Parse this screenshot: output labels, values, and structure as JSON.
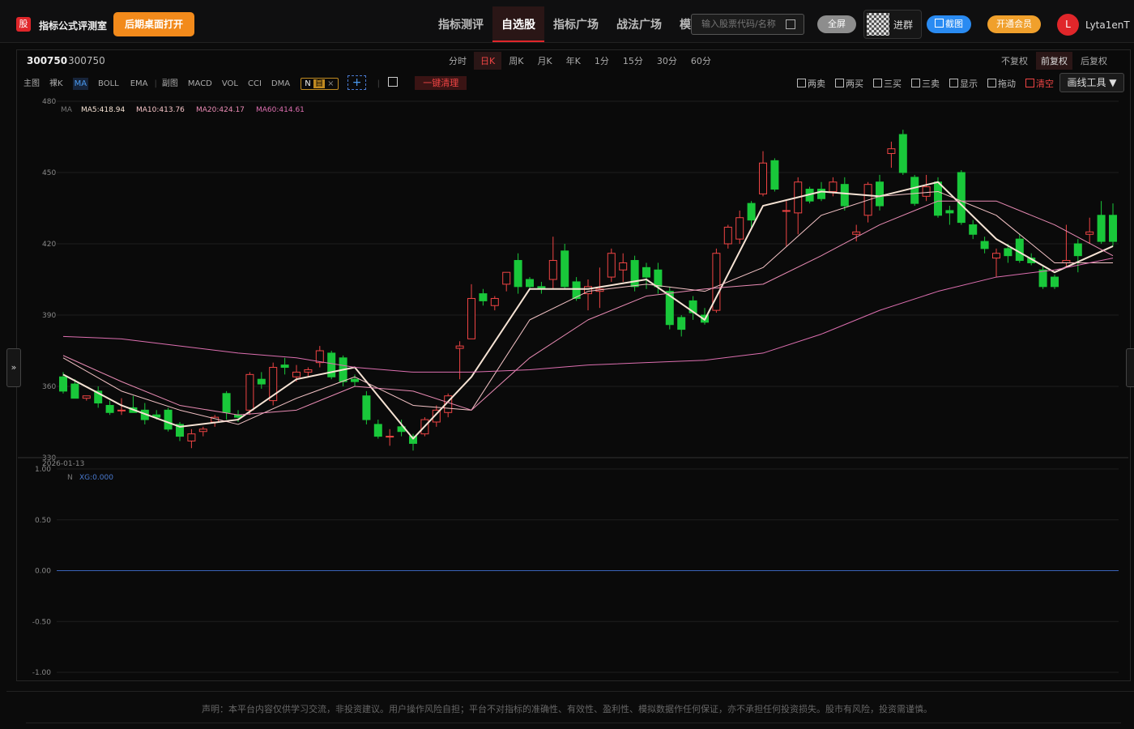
{
  "header": {
    "logo": "股",
    "title": "指标公式评测室",
    "open_btn": "后期桌面打开",
    "nav": [
      "指标测评",
      "自选股",
      "指标广场",
      "战法广场",
      "模拟盘"
    ],
    "search": "输入股票代码/名称",
    "fullscreen": "全屏",
    "group": "进群",
    "screenshot": "截图",
    "vip": "开通会员",
    "avatar": "L",
    "user": "Lyta1enT"
  },
  "toolbar": {
    "code": "300750",
    "name": "300750",
    "periods": [
      "分时",
      "日K",
      "周K",
      "月K",
      "年K",
      "1分",
      "15分",
      "30分",
      "60分"
    ],
    "adjust": [
      "不复权",
      "前复权",
      "后复权"
    ],
    "main": "主图",
    "main_items": [
      "裸K",
      "MA",
      "BOLL",
      "EMA"
    ],
    "sub": "副图",
    "sub_items": [
      "MACD",
      "VOL",
      "CCI",
      "DMA"
    ],
    "tag": "N",
    "tag_self": "自",
    "add": "+",
    "clear": "一键清理",
    "signals": [
      "两卖",
      "两买",
      "三买",
      "三卖",
      "显示",
      "拖动",
      "清空"
    ],
    "draw_tool": "画线工具 ▼",
    "side": "»"
  },
  "chart_data": {
    "type": "candlestick",
    "ylim": [
      330,
      480
    ],
    "yticks": [
      480,
      450,
      420,
      390,
      360,
      330
    ],
    "grid": true,
    "up_color": "#ef4444",
    "down_color": "#19c83a",
    "date_label": "2026-01-13",
    "ma_label": "MA",
    "ohlc": [
      [
        364,
        366,
        357,
        358
      ],
      [
        361,
        363,
        355,
        355
      ],
      [
        355,
        356,
        354,
        356
      ],
      [
        358,
        360,
        351,
        353
      ],
      [
        352,
        354,
        348,
        349
      ],
      [
        350,
        355,
        348,
        350
      ],
      [
        351,
        356,
        349,
        349
      ],
      [
        350,
        353,
        344,
        346
      ],
      [
        348,
        350,
        346,
        347
      ],
      [
        350,
        351,
        341,
        342
      ],
      [
        344,
        345,
        337,
        339
      ],
      [
        337,
        342,
        334,
        340
      ],
      [
        341,
        343,
        339,
        342
      ],
      [
        345,
        348,
        343,
        347
      ],
      [
        357,
        358,
        346,
        349
      ],
      [
        348,
        350,
        345,
        347
      ],
      [
        350,
        366,
        348,
        365
      ],
      [
        363,
        366,
        359,
        361
      ],
      [
        354,
        370,
        352,
        368
      ],
      [
        369,
        372,
        365,
        368
      ],
      [
        364,
        369,
        362,
        366
      ],
      [
        366,
        368,
        364,
        367
      ],
      [
        370,
        377,
        368,
        375
      ],
      [
        374,
        375,
        363,
        364
      ],
      [
        372,
        373,
        360,
        362
      ],
      [
        363,
        365,
        360,
        362
      ],
      [
        356,
        358,
        344,
        346
      ],
      [
        344,
        346,
        338,
        339
      ],
      [
        339,
        342,
        335,
        339
      ],
      [
        343,
        346,
        339,
        341
      ],
      [
        339,
        340,
        333,
        336
      ],
      [
        340,
        347,
        339,
        346
      ],
      [
        345,
        352,
        343,
        350
      ],
      [
        349,
        357,
        347,
        356
      ],
      [
        376,
        379,
        363,
        377
      ],
      [
        380,
        403,
        380,
        397
      ],
      [
        399,
        401,
        394,
        396
      ],
      [
        394,
        398,
        392,
        397
      ],
      [
        403,
        408,
        400,
        408
      ],
      [
        413,
        416,
        399,
        402
      ],
      [
        405,
        406,
        401,
        402
      ],
      [
        402,
        404,
        399,
        401
      ],
      [
        405,
        423,
        401,
        413
      ],
      [
        417,
        420,
        401,
        402
      ],
      [
        404,
        406,
        396,
        397
      ],
      [
        399,
        405,
        392,
        402
      ],
      [
        400,
        410,
        393,
        401
      ],
      [
        406,
        418,
        404,
        416
      ],
      [
        409,
        416,
        404,
        412
      ],
      [
        413,
        415,
        400,
        402
      ],
      [
        410,
        412,
        401,
        406
      ],
      [
        409,
        412,
        399,
        402
      ],
      [
        400,
        402,
        384,
        386
      ],
      [
        389,
        390,
        381,
        384
      ],
      [
        396,
        398,
        388,
        391
      ],
      [
        390,
        393,
        386,
        387
      ],
      [
        392,
        418,
        391,
        416
      ],
      [
        420,
        428,
        418,
        427
      ],
      [
        422,
        434,
        420,
        431
      ],
      [
        437,
        438,
        427,
        430
      ],
      [
        441,
        459,
        440,
        454
      ],
      [
        455,
        456,
        442,
        443
      ],
      [
        434,
        438,
        419,
        434
      ],
      [
        433,
        448,
        424,
        446
      ],
      [
        443,
        444,
        437,
        438
      ],
      [
        443,
        446,
        438,
        439
      ],
      [
        442,
        448,
        440,
        446
      ],
      [
        445,
        448,
        434,
        436
      ],
      [
        424,
        428,
        421,
        425
      ],
      [
        432,
        446,
        429,
        445
      ],
      [
        446,
        449,
        434,
        436
      ],
      [
        458,
        463,
        452,
        460
      ],
      [
        466,
        468,
        449,
        450
      ],
      [
        448,
        449,
        436,
        437
      ],
      [
        440,
        449,
        438,
        444
      ],
      [
        446,
        448,
        431,
        432
      ],
      [
        434,
        436,
        428,
        433
      ],
      [
        450,
        451,
        428,
        429
      ],
      [
        428,
        430,
        422,
        424
      ],
      [
        421,
        423,
        416,
        418
      ],
      [
        414,
        418,
        406,
        416
      ],
      [
        418,
        420,
        412,
        415
      ],
      [
        422,
        424,
        412,
        413
      ],
      [
        414,
        416,
        411,
        412
      ],
      [
        409,
        411,
        401,
        402
      ],
      [
        406,
        407,
        401,
        402
      ],
      [
        412,
        428,
        410,
        413
      ],
      [
        420,
        422,
        408,
        415
      ],
      [
        424,
        431,
        420,
        425
      ],
      [
        432,
        438,
        420,
        421
      ],
      [
        432,
        437,
        419,
        421
      ]
    ],
    "ma_x": [
      0,
      5,
      10,
      15,
      20,
      25,
      30,
      35,
      40,
      45,
      50,
      55,
      60,
      65,
      70,
      75,
      80,
      85,
      90
    ],
    "ma": [
      {
        "name": "MA5:418.94",
        "color": "#f6e3d4",
        "width": 2,
        "values": [
          365,
          352,
          343,
          346,
          363,
          368,
          338,
          364,
          401,
          401,
          405,
          388,
          436,
          442,
          440,
          446,
          422,
          408,
          419
        ]
      },
      {
        "name": "MA10:413.76",
        "color": "#f4c3c6",
        "width": 1,
        "values": [
          372,
          358,
          350,
          344,
          355,
          364,
          352,
          350,
          388,
          400,
          403,
          400,
          410,
          432,
          440,
          442,
          432,
          412,
          412
        ]
      },
      {
        "name": "MA20:424.17",
        "color": "#e98bb4",
        "width": 1,
        "values": [
          373,
          362,
          352,
          348,
          350,
          360,
          358,
          350,
          372,
          388,
          398,
          401,
          403,
          415,
          428,
          438,
          438,
          428,
          415
        ]
      },
      {
        "name": "MA60:414.61",
        "color": "#dd6fb0",
        "width": 1,
        "values": [
          381,
          380,
          377,
          374,
          372,
          368,
          366,
          366,
          367,
          369,
          370,
          371,
          374,
          382,
          392,
          400,
          406,
          409,
          414
        ]
      }
    ],
    "sub": {
      "label": "N",
      "ylim": [
        -1,
        1
      ],
      "yticks": [
        {
          "value": 1,
          "label": "1.00"
        },
        {
          "value": 0.5,
          "label": "0.50"
        },
        {
          "value": 0,
          "label": "0.00"
        },
        {
          "value": -0.5,
          "label": "-0.50"
        },
        {
          "value": -1,
          "label": "-1.00"
        }
      ],
      "xg": {
        "name": "XG:0.000",
        "color": "#3a63b8",
        "value": 0
      }
    }
  },
  "footer": "声明：本平台内容仅供学习交流，非投资建议。用户操作风险自担；平台不对指标的准确性、有效性、盈利性、模拟数据作任何保证，亦不承担任何投资损失。股市有风险，投资需谨慎。"
}
